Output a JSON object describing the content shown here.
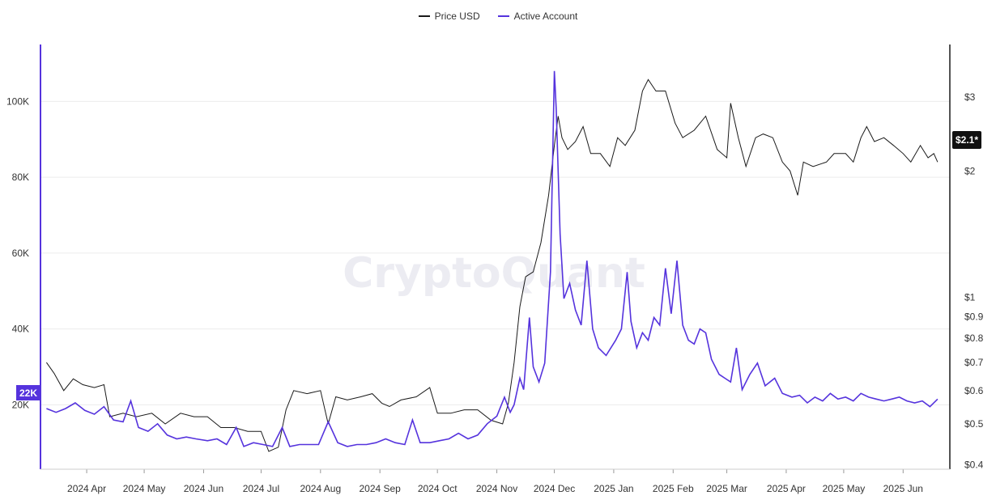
{
  "legend": {
    "price_label": "Price USD",
    "accounts_label": "Active Account"
  },
  "colors": {
    "price": "#1a1a1a",
    "accounts": "#5533dd",
    "left_axis": "#5533dd",
    "grid": "#ececec"
  },
  "watermark": "CryptoQuant",
  "badges": {
    "left": "22K",
    "right": "$2.1*"
  },
  "chart_data": {
    "type": "line",
    "x_start": "2024-03-10",
    "x_end": "2025-06-22",
    "x_ticks": [
      {
        "date": "2024-04-01",
        "label": "2024 Apr"
      },
      {
        "date": "2024-05-01",
        "label": "2024 May"
      },
      {
        "date": "2024-06-01",
        "label": "2024 Jun"
      },
      {
        "date": "2024-07-01",
        "label": "2024 Jul"
      },
      {
        "date": "2024-08-01",
        "label": "2024 Aug"
      },
      {
        "date": "2024-09-01",
        "label": "2024 Sep"
      },
      {
        "date": "2024-10-01",
        "label": "2024 Oct"
      },
      {
        "date": "2024-11-01",
        "label": "2024 Nov"
      },
      {
        "date": "2024-12-01",
        "label": "2024 Dec"
      },
      {
        "date": "2025-01-01",
        "label": "2025 Jan"
      },
      {
        "date": "2025-02-01",
        "label": "2025 Feb"
      },
      {
        "date": "2025-03-01",
        "label": "2025 Mar"
      },
      {
        "date": "2025-04-01",
        "label": "2025 Apr"
      },
      {
        "date": "2025-05-01",
        "label": "2025 May"
      },
      {
        "date": "2025-06-01",
        "label": "2025 Jun"
      }
    ],
    "left_axis": {
      "name": "Active Account",
      "ticks": [
        20000,
        40000,
        60000,
        80000,
        100000
      ],
      "tick_labels": [
        "20K",
        "40K",
        "60K",
        "80K",
        "100K"
      ],
      "range": [
        3000,
        115000
      ]
    },
    "right_axis": {
      "name": "Price USD",
      "scale": "log",
      "ticks": [
        0.4,
        0.5,
        0.6,
        0.7,
        0.8,
        0.9,
        1,
        2,
        3
      ],
      "tick_labels": [
        "$0.4",
        "$0.5",
        "$0.6",
        "$0.7",
        "$0.8",
        "$0.9",
        "$1",
        "$2",
        "$3"
      ],
      "range": [
        0.39,
        4.0
      ]
    },
    "grid": true,
    "legend_position": "top-center",
    "series": [
      {
        "name": "Price USD",
        "axis": "right",
        "points": [
          [
            "2024-03-11",
            0.7
          ],
          [
            "2024-03-15",
            0.66
          ],
          [
            "2024-03-20",
            0.6
          ],
          [
            "2024-03-25",
            0.64
          ],
          [
            "2024-03-30",
            0.62
          ],
          [
            "2024-04-05",
            0.61
          ],
          [
            "2024-04-10",
            0.62
          ],
          [
            "2024-04-13",
            0.52
          ],
          [
            "2024-04-20",
            0.53
          ],
          [
            "2024-04-27",
            0.52
          ],
          [
            "2024-05-05",
            0.53
          ],
          [
            "2024-05-12",
            0.5
          ],
          [
            "2024-05-20",
            0.53
          ],
          [
            "2024-05-27",
            0.52
          ],
          [
            "2024-06-03",
            0.52
          ],
          [
            "2024-06-10",
            0.49
          ],
          [
            "2024-06-17",
            0.49
          ],
          [
            "2024-06-24",
            0.48
          ],
          [
            "2024-07-01",
            0.48
          ],
          [
            "2024-07-05",
            0.43
          ],
          [
            "2024-07-10",
            0.44
          ],
          [
            "2024-07-14",
            0.54
          ],
          [
            "2024-07-18",
            0.6
          ],
          [
            "2024-07-25",
            0.59
          ],
          [
            "2024-08-01",
            0.6
          ],
          [
            "2024-08-05",
            0.5
          ],
          [
            "2024-08-09",
            0.58
          ],
          [
            "2024-08-15",
            0.57
          ],
          [
            "2024-08-22",
            0.58
          ],
          [
            "2024-08-28",
            0.59
          ],
          [
            "2024-09-02",
            0.56
          ],
          [
            "2024-09-06",
            0.55
          ],
          [
            "2024-09-12",
            0.57
          ],
          [
            "2024-09-20",
            0.58
          ],
          [
            "2024-09-27",
            0.61
          ],
          [
            "2024-10-01",
            0.53
          ],
          [
            "2024-10-08",
            0.53
          ],
          [
            "2024-10-15",
            0.54
          ],
          [
            "2024-10-22",
            0.54
          ],
          [
            "2024-10-29",
            0.51
          ],
          [
            "2024-11-04",
            0.5
          ],
          [
            "2024-11-07",
            0.56
          ],
          [
            "2024-11-10",
            0.7
          ],
          [
            "2024-11-13",
            0.95
          ],
          [
            "2024-11-16",
            1.12
          ],
          [
            "2024-11-20",
            1.15
          ],
          [
            "2024-11-24",
            1.35
          ],
          [
            "2024-11-28",
            1.75
          ],
          [
            "2024-12-01",
            2.3
          ],
          [
            "2024-12-03",
            2.7
          ],
          [
            "2024-12-05",
            2.4
          ],
          [
            "2024-12-08",
            2.25
          ],
          [
            "2024-12-12",
            2.35
          ],
          [
            "2024-12-16",
            2.55
          ],
          [
            "2024-12-20",
            2.2
          ],
          [
            "2024-12-25",
            2.2
          ],
          [
            "2024-12-30",
            2.05
          ],
          [
            "2025-01-03",
            2.4
          ],
          [
            "2025-01-07",
            2.3
          ],
          [
            "2025-01-12",
            2.5
          ],
          [
            "2025-01-16",
            3.1
          ],
          [
            "2025-01-19",
            3.3
          ],
          [
            "2025-01-23",
            3.1
          ],
          [
            "2025-01-28",
            3.1
          ],
          [
            "2025-02-02",
            2.6
          ],
          [
            "2025-02-06",
            2.4
          ],
          [
            "2025-02-12",
            2.5
          ],
          [
            "2025-02-18",
            2.7
          ],
          [
            "2025-02-24",
            2.25
          ],
          [
            "2025-03-01",
            2.15
          ],
          [
            "2025-03-03",
            2.9
          ],
          [
            "2025-03-07",
            2.4
          ],
          [
            "2025-03-11",
            2.05
          ],
          [
            "2025-03-16",
            2.4
          ],
          [
            "2025-03-20",
            2.45
          ],
          [
            "2025-03-25",
            2.4
          ],
          [
            "2025-03-30",
            2.1
          ],
          [
            "2025-04-03",
            2.0
          ],
          [
            "2025-04-07",
            1.75
          ],
          [
            "2025-04-10",
            2.1
          ],
          [
            "2025-04-15",
            2.05
          ],
          [
            "2025-04-22",
            2.1
          ],
          [
            "2025-04-26",
            2.2
          ],
          [
            "2025-05-02",
            2.2
          ],
          [
            "2025-05-06",
            2.1
          ],
          [
            "2025-05-10",
            2.4
          ],
          [
            "2025-05-13",
            2.55
          ],
          [
            "2025-05-17",
            2.35
          ],
          [
            "2025-05-22",
            2.4
          ],
          [
            "2025-05-27",
            2.3
          ],
          [
            "2025-06-01",
            2.2
          ],
          [
            "2025-06-05",
            2.1
          ],
          [
            "2025-06-10",
            2.3
          ],
          [
            "2025-06-14",
            2.15
          ],
          [
            "2025-06-17",
            2.2
          ],
          [
            "2025-06-19",
            2.1
          ]
        ]
      },
      {
        "name": "Active Account",
        "axis": "left",
        "points": [
          [
            "2024-03-11",
            19000
          ],
          [
            "2024-03-16",
            18000
          ],
          [
            "2024-03-21",
            19000
          ],
          [
            "2024-03-26",
            20500
          ],
          [
            "2024-03-31",
            18500
          ],
          [
            "2024-04-05",
            17500
          ],
          [
            "2024-04-10",
            19500
          ],
          [
            "2024-04-15",
            16000
          ],
          [
            "2024-04-20",
            15500
          ],
          [
            "2024-04-24",
            21000
          ],
          [
            "2024-04-28",
            14000
          ],
          [
            "2024-05-03",
            13000
          ],
          [
            "2024-05-08",
            15000
          ],
          [
            "2024-05-13",
            12000
          ],
          [
            "2024-05-18",
            11000
          ],
          [
            "2024-05-23",
            11500
          ],
          [
            "2024-05-28",
            11000
          ],
          [
            "2024-06-03",
            10500
          ],
          [
            "2024-06-08",
            11000
          ],
          [
            "2024-06-13",
            9500
          ],
          [
            "2024-06-18",
            14000
          ],
          [
            "2024-06-22",
            9000
          ],
          [
            "2024-06-27",
            10000
          ],
          [
            "2024-07-02",
            9500
          ],
          [
            "2024-07-07",
            9000
          ],
          [
            "2024-07-12",
            14000
          ],
          [
            "2024-07-16",
            9000
          ],
          [
            "2024-07-21",
            9500
          ],
          [
            "2024-07-26",
            9500
          ],
          [
            "2024-07-31",
            9500
          ],
          [
            "2024-08-05",
            15500
          ],
          [
            "2024-08-10",
            10000
          ],
          [
            "2024-08-15",
            9000
          ],
          [
            "2024-08-20",
            9500
          ],
          [
            "2024-08-25",
            9500
          ],
          [
            "2024-08-30",
            10000
          ],
          [
            "2024-09-04",
            11000
          ],
          [
            "2024-09-09",
            10000
          ],
          [
            "2024-09-14",
            9500
          ],
          [
            "2024-09-18",
            16000
          ],
          [
            "2024-09-22",
            10000
          ],
          [
            "2024-09-27",
            10000
          ],
          [
            "2024-10-02",
            10500
          ],
          [
            "2024-10-07",
            11000
          ],
          [
            "2024-10-12",
            12500
          ],
          [
            "2024-10-17",
            11000
          ],
          [
            "2024-10-22",
            12000
          ],
          [
            "2024-10-27",
            15000
          ],
          [
            "2024-11-01",
            17000
          ],
          [
            "2024-11-05",
            22000
          ],
          [
            "2024-11-08",
            18000
          ],
          [
            "2024-11-10",
            20000
          ],
          [
            "2024-11-13",
            27000
          ],
          [
            "2024-11-15",
            24000
          ],
          [
            "2024-11-18",
            43000
          ],
          [
            "2024-11-20",
            30000
          ],
          [
            "2024-11-23",
            26000
          ],
          [
            "2024-11-26",
            31000
          ],
          [
            "2024-11-29",
            55000
          ],
          [
            "2024-12-01",
            108000
          ],
          [
            "2024-12-02",
            98000
          ],
          [
            "2024-12-04",
            65000
          ],
          [
            "2024-12-06",
            48000
          ],
          [
            "2024-12-09",
            52000
          ],
          [
            "2024-12-12",
            45000
          ],
          [
            "2024-12-15",
            41000
          ],
          [
            "2024-12-18",
            58000
          ],
          [
            "2024-12-21",
            40000
          ],
          [
            "2024-12-24",
            35000
          ],
          [
            "2024-12-28",
            33000
          ],
          [
            "2025-01-02",
            37000
          ],
          [
            "2025-01-05",
            40000
          ],
          [
            "2025-01-08",
            55000
          ],
          [
            "2025-01-10",
            42000
          ],
          [
            "2025-01-13",
            35000
          ],
          [
            "2025-01-16",
            39000
          ],
          [
            "2025-01-19",
            37000
          ],
          [
            "2025-01-22",
            43000
          ],
          [
            "2025-01-25",
            41000
          ],
          [
            "2025-01-28",
            56000
          ],
          [
            "2025-01-31",
            44000
          ],
          [
            "2025-02-03",
            58000
          ],
          [
            "2025-02-06",
            41000
          ],
          [
            "2025-02-09",
            37000
          ],
          [
            "2025-02-12",
            36000
          ],
          [
            "2025-02-15",
            40000
          ],
          [
            "2025-02-18",
            39000
          ],
          [
            "2025-02-21",
            32000
          ],
          [
            "2025-02-25",
            28000
          ],
          [
            "2025-02-28",
            27000
          ],
          [
            "2025-03-03",
            26000
          ],
          [
            "2025-03-06",
            35000
          ],
          [
            "2025-03-09",
            24000
          ],
          [
            "2025-03-13",
            28000
          ],
          [
            "2025-03-17",
            31000
          ],
          [
            "2025-03-21",
            25000
          ],
          [
            "2025-03-26",
            27000
          ],
          [
            "2025-03-30",
            23000
          ],
          [
            "2025-04-04",
            22000
          ],
          [
            "2025-04-08",
            22500
          ],
          [
            "2025-04-12",
            20500
          ],
          [
            "2025-04-16",
            22000
          ],
          [
            "2025-04-20",
            21000
          ],
          [
            "2025-04-24",
            23000
          ],
          [
            "2025-04-28",
            21500
          ],
          [
            "2025-05-02",
            22000
          ],
          [
            "2025-05-06",
            21000
          ],
          [
            "2025-05-10",
            23000
          ],
          [
            "2025-05-14",
            22000
          ],
          [
            "2025-05-18",
            21500
          ],
          [
            "2025-05-22",
            21000
          ],
          [
            "2025-05-26",
            21500
          ],
          [
            "2025-05-30",
            22000
          ],
          [
            "2025-06-03",
            21000
          ],
          [
            "2025-06-07",
            20500
          ],
          [
            "2025-06-11",
            21000
          ],
          [
            "2025-06-15",
            19500
          ],
          [
            "2025-06-19",
            21500
          ]
        ]
      }
    ]
  }
}
